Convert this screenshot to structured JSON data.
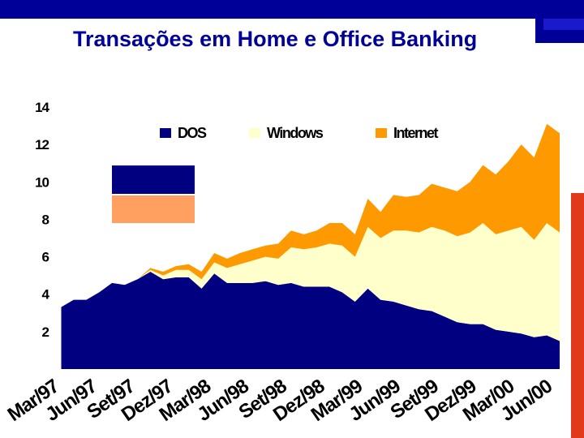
{
  "title": "Transações em Home e Office Banking",
  "colors": {
    "frame": "#000099",
    "dos": "#000080",
    "windows": "#ffffcc",
    "internet": "#ff9900"
  },
  "chart_data": {
    "type": "area",
    "stacked": true,
    "title": "Transações em Home e Office Banking",
    "ylim": [
      0,
      14
    ],
    "yticks": [
      2,
      4,
      6,
      8,
      10,
      12,
      14
    ],
    "grid": false,
    "legend": "top",
    "x_labels": [
      "Mar/97",
      "Jun/97",
      "Set/97",
      "Dez/97",
      "Mar/98",
      "Jun/98",
      "Set/98",
      "Dez/98",
      "Mar/99",
      "Jun/99",
      "Set/99",
      "Dez/99",
      "Mar/00",
      "Jun/00"
    ],
    "series": [
      {
        "name": "DOS",
        "color": "#000080",
        "values": [
          3.3,
          3.7,
          3.7,
          4.1,
          4.6,
          4.5,
          4.8,
          5.2,
          4.8,
          4.9,
          4.9,
          4.3,
          5.1,
          4.6,
          4.6,
          4.6,
          4.7,
          4.5,
          4.6,
          4.4,
          4.4,
          4.4,
          4.1,
          3.6,
          4.3,
          3.7,
          3.6,
          3.4,
          3.2,
          3.1,
          2.8,
          2.5,
          2.4,
          2.4,
          2.1,
          2.0,
          1.9,
          1.7,
          1.8,
          1.5
        ]
      },
      {
        "name": "Windows",
        "color": "#ffffcc",
        "values": [
          0,
          0,
          0,
          0,
          0,
          0,
          0,
          0.1,
          0.2,
          0.4,
          0.4,
          0.5,
          0.6,
          0.8,
          1.0,
          1.2,
          1.3,
          1.4,
          1.9,
          2.0,
          2.1,
          2.3,
          2.5,
          2.4,
          3.3,
          3.3,
          3.8,
          4.0,
          4.1,
          4.5,
          4.6,
          4.6,
          4.9,
          5.4,
          5.1,
          5.4,
          5.7,
          5.2,
          6.0,
          5.8
        ]
      },
      {
        "name": "Internet",
        "color": "#ff9900",
        "values": [
          0,
          0,
          0,
          0,
          0,
          0,
          0,
          0.1,
          0.2,
          0.2,
          0.3,
          0.4,
          0.5,
          0.5,
          0.6,
          0.6,
          0.6,
          0.8,
          0.9,
          0.8,
          0.9,
          1.1,
          1.2,
          1.2,
          1.5,
          1.4,
          1.9,
          1.8,
          2.0,
          2.3,
          2.3,
          2.4,
          2.7,
          3.1,
          3.2,
          3.7,
          4.4,
          4.4,
          5.3,
          5.3
        ]
      }
    ]
  }
}
